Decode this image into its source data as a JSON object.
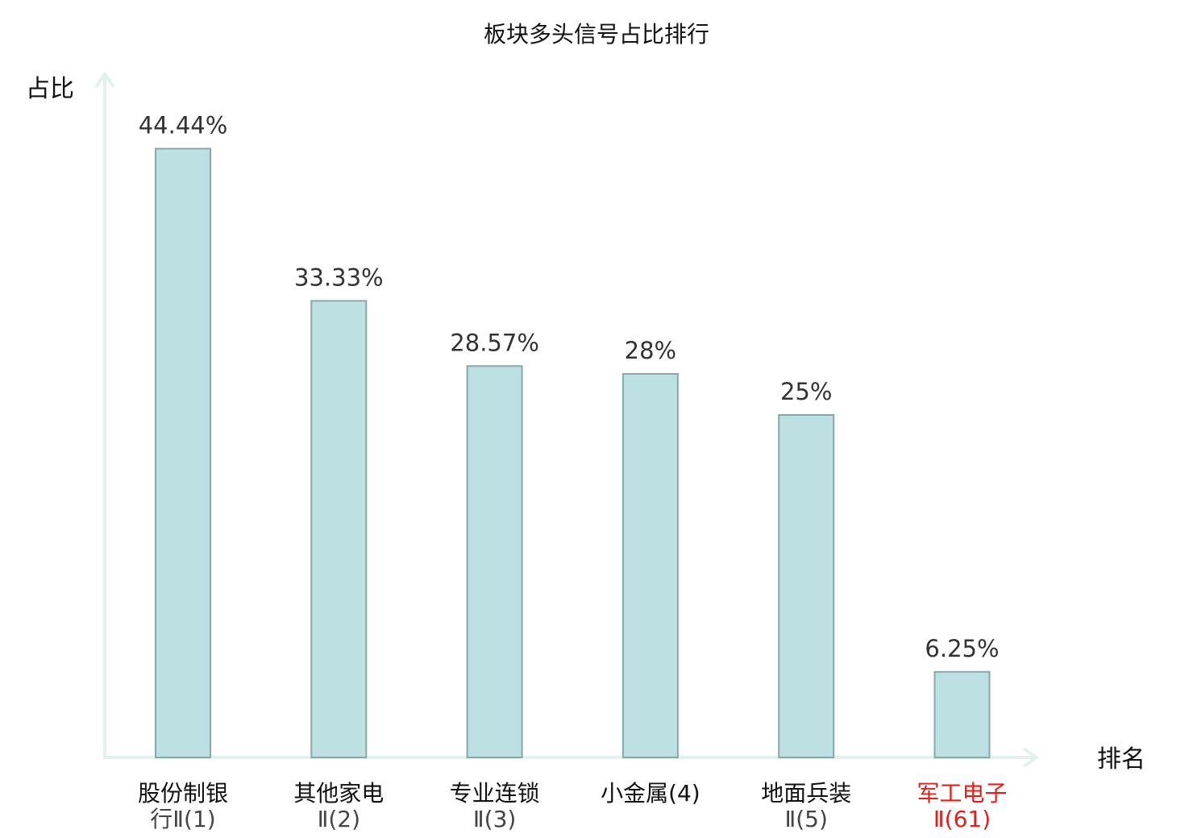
{
  "chart_data": {
    "type": "bar",
    "title": "板块多头信号占比排行",
    "ylabel": "占比",
    "xlabel": "排名",
    "categories": [
      {
        "line1": "股份制银",
        "line2": "行Ⅱ(1)",
        "highlight": false
      },
      {
        "line1": "其他家电",
        "line2": "Ⅱ(2)",
        "highlight": false
      },
      {
        "line1": "专业连锁",
        "line2": "Ⅱ(3)",
        "highlight": false
      },
      {
        "line1": "小金属(4)",
        "line2": "",
        "highlight": false
      },
      {
        "line1": "地面兵装",
        "line2": "Ⅱ(5)",
        "highlight": false
      },
      {
        "line1": "军工电子",
        "line2": "Ⅱ(61)",
        "highlight": true
      }
    ],
    "values": [
      44.44,
      33.33,
      28.57,
      28,
      25,
      6.25
    ],
    "value_labels": [
      "44.44%",
      "33.33%",
      "28.57%",
      "28%",
      "25%",
      "6.25%"
    ],
    "ylim": [
      0,
      50
    ],
    "grid": false,
    "colors": {
      "bar_fill": "#bde0e2",
      "bar_stroke": "#86a8ab",
      "axis": "#dff2ee",
      "highlight": "#e0201b"
    }
  }
}
